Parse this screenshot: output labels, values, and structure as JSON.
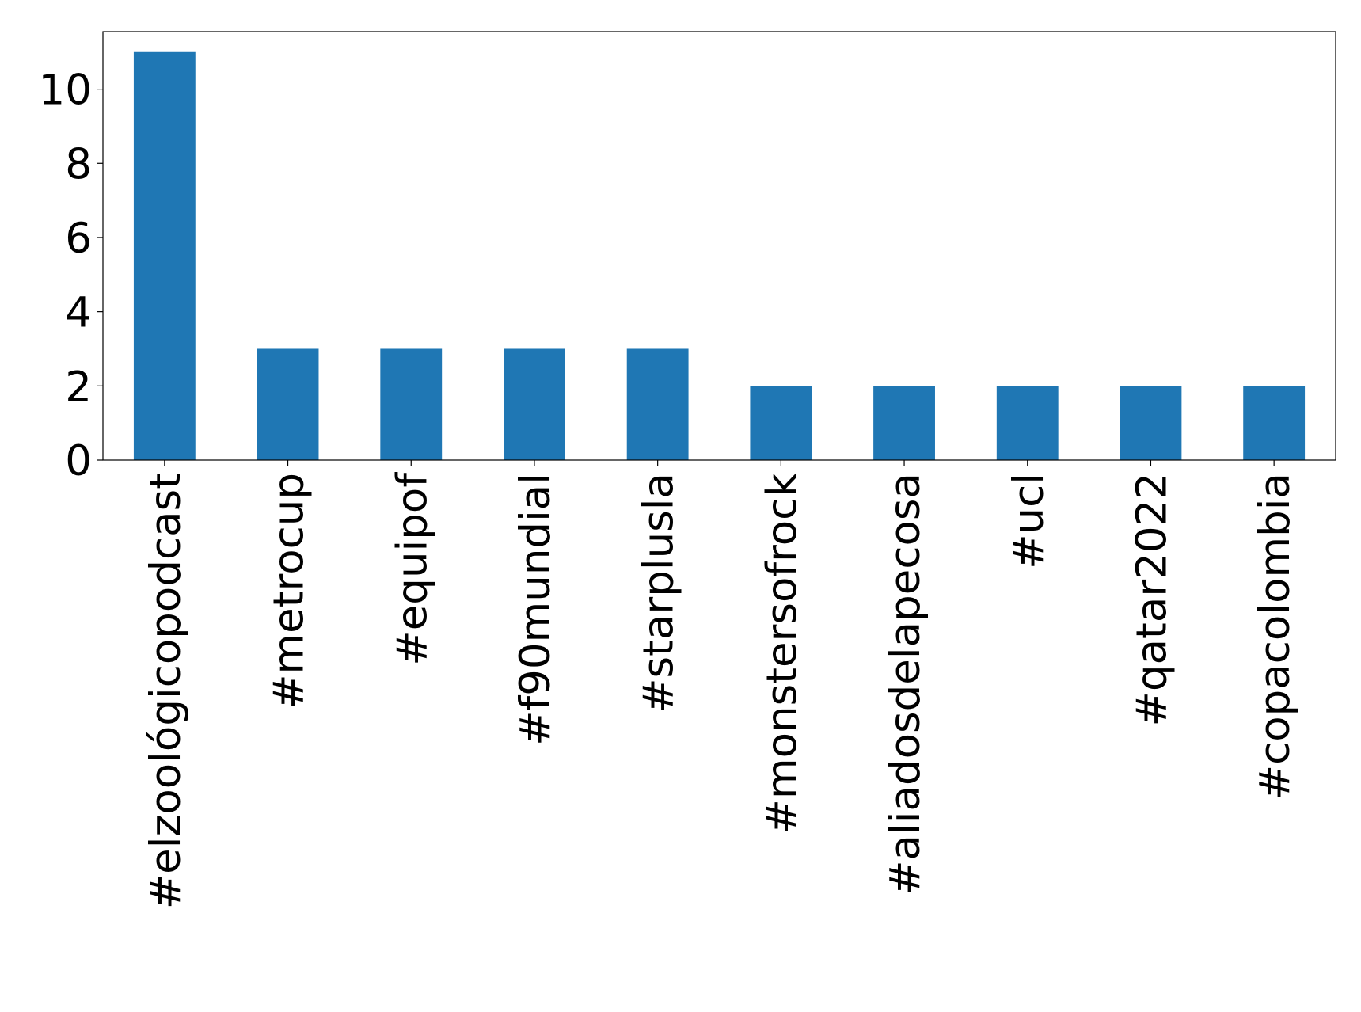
{
  "chart_data": {
    "type": "bar",
    "categories": [
      "#elzoológicopodcast",
      "#metrocup",
      "#equipof",
      "#f90mundial",
      "#starplusla",
      "#monstersofrock",
      "#aliadosdelapecosa",
      "#ucl",
      "#qatar2022",
      "#copacolombia"
    ],
    "values": [
      11,
      3,
      3,
      3,
      3,
      2,
      2,
      2,
      2,
      2
    ],
    "color": "#1f77b4",
    "ylim": [
      0,
      11.55
    ],
    "yticks": [
      0,
      2,
      4,
      6,
      8,
      10
    ],
    "grid": false
  }
}
